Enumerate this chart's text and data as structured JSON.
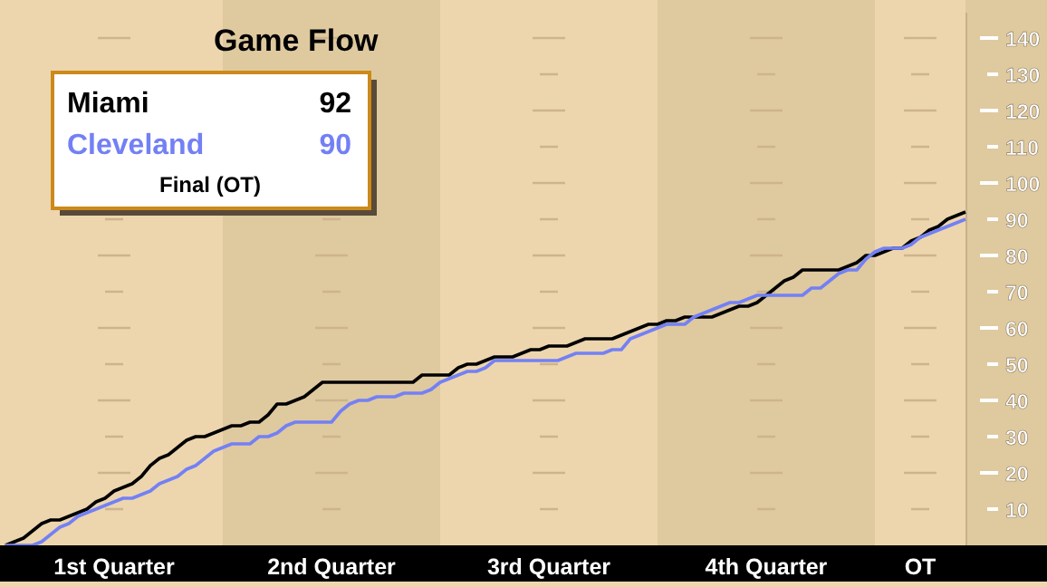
{
  "chart_data": {
    "type": "line",
    "title": "Game Flow",
    "categories": [
      null,
      null,
      null,
      null,
      null,
      null,
      null,
      null,
      null,
      null,
      null,
      null,
      "1st Quarter",
      null,
      null,
      null,
      null,
      null,
      null,
      null,
      null,
      null,
      null,
      null,
      null,
      null,
      null,
      null,
      null,
      null,
      null,
      null,
      null,
      null,
      null,
      null,
      "2nd Quarter",
      null,
      null,
      null,
      null,
      null,
      null,
      null,
      null,
      null,
      null,
      null,
      null,
      null,
      null,
      null,
      null,
      null,
      null,
      null,
      null,
      null,
      null,
      null,
      "3rd Quarter",
      null,
      null,
      null,
      null,
      null,
      null,
      null,
      null,
      null,
      null,
      null,
      null,
      null,
      null,
      null,
      null,
      null,
      null,
      null,
      null,
      null,
      null,
      null,
      "4th Quarter",
      null,
      null,
      null,
      null,
      null,
      null,
      null,
      null,
      null,
      null,
      null,
      null,
      null,
      null,
      null,
      null,
      "OT",
      null,
      null,
      null,
      null,
      null
    ],
    "ylim": [
      0,
      147
    ],
    "yticks": [
      10,
      20,
      30,
      40,
      50,
      60,
      70,
      80,
      90,
      100,
      110,
      120,
      130,
      140
    ],
    "legend": "top left",
    "annotations": [
      "92",
      "90",
      "Final (OT)"
    ],
    "series": [
      {
        "name": "Miami",
        "color": "#000000",
        "values": [
          0,
          1,
          2,
          4,
          6,
          7,
          7,
          8,
          9,
          10,
          12,
          13,
          15,
          16,
          17,
          19,
          22,
          24,
          25,
          27,
          29,
          30,
          30,
          31,
          32,
          33,
          33,
          34,
          34,
          36,
          39,
          39,
          40,
          41,
          43,
          45,
          45,
          45,
          45,
          45,
          45,
          45,
          45,
          45,
          45,
          45,
          47,
          47,
          47,
          47,
          49,
          50,
          50,
          51,
          52,
          52,
          52,
          53,
          54,
          54,
          55,
          55,
          55,
          56,
          57,
          57,
          57,
          57,
          58,
          59,
          60,
          61,
          61,
          62,
          62,
          63,
          63,
          63,
          63,
          64,
          65,
          66,
          66,
          67,
          69,
          71,
          73,
          74,
          76,
          76,
          76,
          76,
          76,
          77,
          78,
          80,
          80,
          81,
          82,
          82,
          84,
          85,
          87,
          88,
          90,
          91,
          92
        ]
      },
      {
        "name": "Cleveland",
        "color": "#7380f5",
        "values": [
          0,
          0,
          0,
          0,
          1,
          3,
          5,
          6,
          8,
          9,
          10,
          11,
          12,
          13,
          13,
          14,
          15,
          17,
          18,
          19,
          21,
          22,
          24,
          26,
          27,
          28,
          28,
          28,
          30,
          30,
          31,
          33,
          34,
          34,
          34,
          34,
          34,
          37,
          39,
          40,
          40,
          41,
          41,
          41,
          42,
          42,
          42,
          43,
          45,
          46,
          47,
          48,
          48,
          49,
          51,
          51,
          51,
          51,
          51,
          51,
          51,
          51,
          52,
          53,
          53,
          53,
          53,
          54,
          54,
          57,
          58,
          59,
          60,
          61,
          61,
          61,
          63,
          64,
          65,
          66,
          67,
          67,
          68,
          69,
          69,
          69,
          69,
          69,
          69,
          71,
          71,
          73,
          75,
          76,
          76,
          79,
          81,
          82,
          82,
          82,
          83,
          85,
          86,
          87,
          88,
          89,
          90
        ]
      }
    ]
  }
}
